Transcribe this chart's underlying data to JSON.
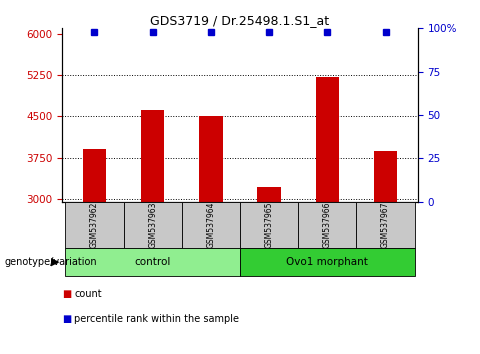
{
  "title": "GDS3719 / Dr.25498.1.S1_at",
  "samples": [
    "GSM537962",
    "GSM537963",
    "GSM537964",
    "GSM537965",
    "GSM537966",
    "GSM537967"
  ],
  "counts": [
    3900,
    4620,
    4510,
    3210,
    5210,
    3870
  ],
  "percentile_ranks": [
    98,
    98,
    98,
    98,
    98,
    98
  ],
  "ylim_left": [
    2950,
    6100
  ],
  "ylim_right": [
    0,
    100
  ],
  "yticks_left": [
    3000,
    3750,
    4500,
    5250,
    6000
  ],
  "yticks_right": [
    0,
    25,
    50,
    75,
    100
  ],
  "bar_color": "#cc0000",
  "dot_color": "#0000cc",
  "dot_size": 5,
  "groups": [
    {
      "label": "control",
      "indices": [
        0,
        1,
        2
      ],
      "color": "#90ee90"
    },
    {
      "label": "Ovo1 morphant",
      "indices": [
        3,
        4,
        5
      ],
      "color": "#33cc33"
    }
  ],
  "legend_items": [
    {
      "label": "count",
      "color": "#cc0000"
    },
    {
      "label": "percentile rank within the sample",
      "color": "#0000cc"
    }
  ],
  "plot_bg": "#ffffff",
  "tick_color_left": "#cc0000",
  "tick_color_right": "#0000cc",
  "bar_width": 0.4,
  "group_label": "genotype/variation"
}
